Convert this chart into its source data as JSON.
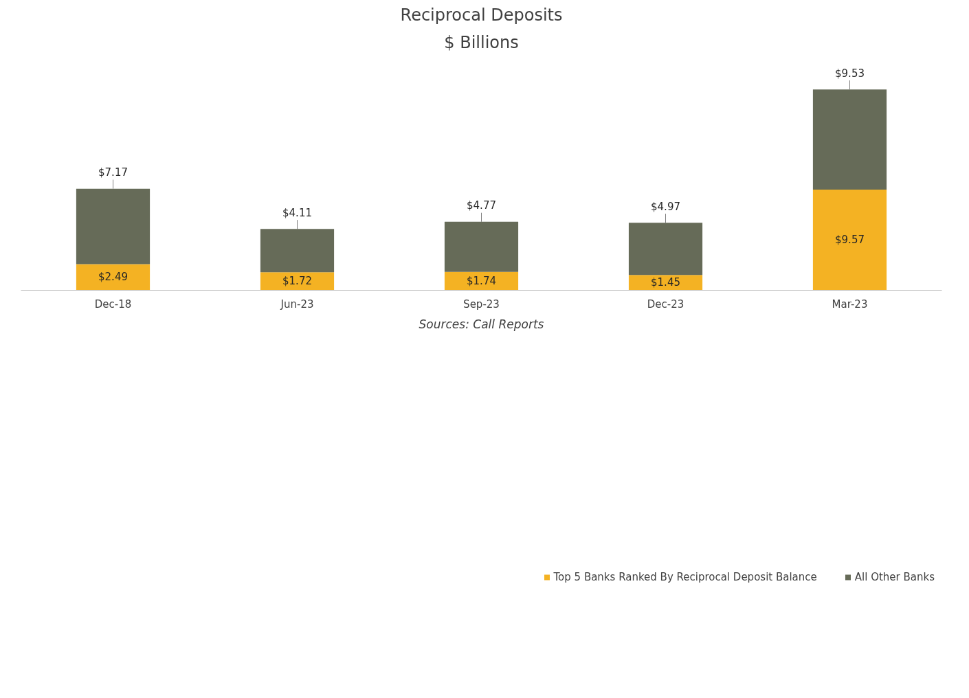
{
  "chart_data": {
    "type": "bar",
    "title": "Reciprocal Deposits",
    "subtitle": "$ Billions",
    "categories": [
      "Dec-18",
      "Jun-23",
      "Sep-23",
      "Dec-23",
      "Mar-23"
    ],
    "stacked": true,
    "series": [
      {
        "name": "Top 5 Banks Ranked By Reciprocal Deposit Balance",
        "color": "#f4b223",
        "values": [
          2.49,
          1.72,
          1.74,
          1.45,
          9.57
        ],
        "value_labels": [
          "$2.49",
          "$1.72",
          "$1.74",
          "$1.45",
          "$9.57"
        ]
      },
      {
        "name": "All Other Banks",
        "color": "#666b58",
        "values": [
          7.17,
          4.11,
          4.77,
          4.97,
          9.53
        ],
        "value_labels": [
          "$7.17",
          "$4.11",
          "$4.77",
          "$4.97",
          "$9.53"
        ]
      }
    ],
    "data_labels": true,
    "legend": "bottom",
    "grid": false,
    "annotations": [
      "Sources: Call Reports"
    ]
  }
}
